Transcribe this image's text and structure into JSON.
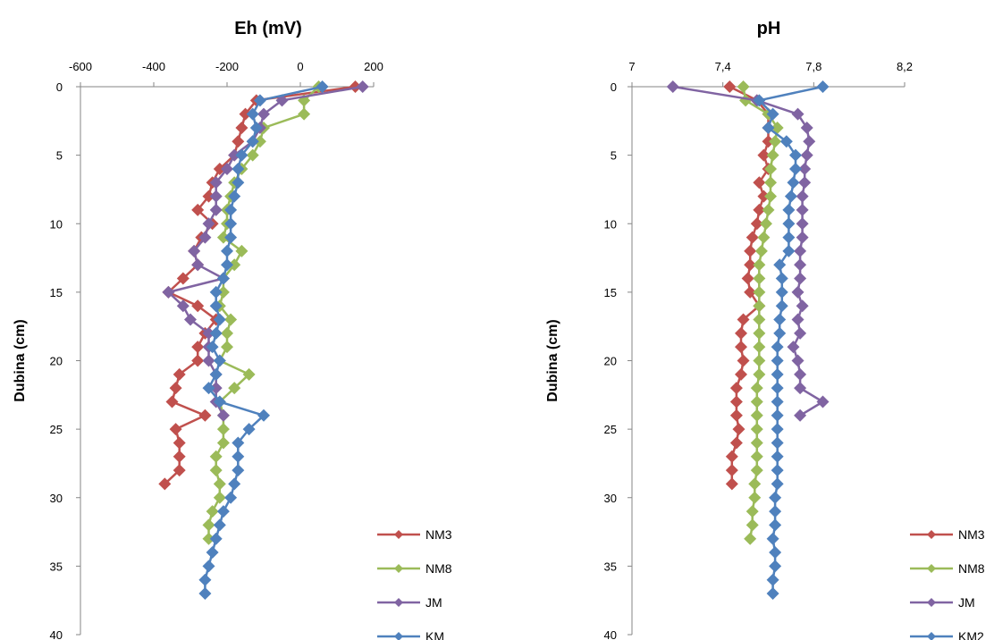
{
  "chart_data": [
    {
      "type": "scatter",
      "title": "Eh (mV)",
      "ylabel": "Dubina (cm)",
      "xlabel": "",
      "x_axis_position": "top",
      "y_inverted": true,
      "xlim": [
        -600,
        200
      ],
      "ylim": [
        0,
        40
      ],
      "x_ticks": [
        -600,
        -400,
        -200,
        0,
        200
      ],
      "x_tick_labels": [
        "-600",
        "-400",
        "-200",
        "0",
        "200"
      ],
      "y_ticks": [
        0,
        5,
        10,
        15,
        20,
        25,
        30,
        35,
        40
      ],
      "y_tick_labels": [
        "0",
        "5",
        "10",
        "15",
        "20",
        "25",
        "30",
        "35",
        "40"
      ],
      "grid": false,
      "legend_position": "bottom-right",
      "series": [
        {
          "name": "NM3",
          "color": "#C0504D",
          "points": [
            [
              150,
              0
            ],
            [
              -120,
              1
            ],
            [
              -150,
              2
            ],
            [
              -160,
              3
            ],
            [
              -170,
              4
            ],
            [
              -180,
              5
            ],
            [
              -220,
              6
            ],
            [
              -240,
              7
            ],
            [
              -250,
              8
            ],
            [
              -280,
              9
            ],
            [
              -240,
              10
            ],
            [
              -270,
              11
            ],
            [
              -290,
              12
            ],
            [
              -280,
              13
            ],
            [
              -320,
              14
            ],
            [
              -360,
              15
            ],
            [
              -280,
              16
            ],
            [
              -230,
              17
            ],
            [
              -260,
              18
            ],
            [
              -280,
              19
            ],
            [
              -280,
              20
            ],
            [
              -330,
              21
            ],
            [
              -340,
              22
            ],
            [
              -350,
              23
            ],
            [
              -260,
              24
            ],
            [
              -340,
              25
            ],
            [
              -330,
              26
            ],
            [
              -330,
              27
            ],
            [
              -330,
              28
            ],
            [
              -370,
              29
            ]
          ]
        },
        {
          "name": "NM8",
          "color": "#9BBB59",
          "points": [
            [
              50,
              0
            ],
            [
              10,
              1
            ],
            [
              10,
              2
            ],
            [
              -100,
              3
            ],
            [
              -110,
              4
            ],
            [
              -130,
              5
            ],
            [
              -160,
              6
            ],
            [
              -180,
              7
            ],
            [
              -190,
              8
            ],
            [
              -200,
              9
            ],
            [
              -200,
              10
            ],
            [
              -210,
              11
            ],
            [
              -160,
              12
            ],
            [
              -180,
              13
            ],
            [
              -210,
              14
            ],
            [
              -210,
              15
            ],
            [
              -220,
              16
            ],
            [
              -190,
              17
            ],
            [
              -200,
              18
            ],
            [
              -200,
              19
            ],
            [
              -220,
              20
            ],
            [
              -140,
              21
            ],
            [
              -180,
              22
            ],
            [
              -220,
              23
            ],
            [
              -210,
              24
            ],
            [
              -210,
              25
            ],
            [
              -210,
              26
            ],
            [
              -230,
              27
            ],
            [
              -230,
              28
            ],
            [
              -220,
              29
            ],
            [
              -220,
              30
            ],
            [
              -240,
              31
            ],
            [
              -250,
              32
            ],
            [
              -250,
              33
            ]
          ]
        },
        {
          "name": "JM",
          "color": "#8064A2",
          "points": [
            [
              170,
              0
            ],
            [
              -50,
              1
            ],
            [
              -100,
              2
            ],
            [
              -110,
              3
            ],
            [
              -130,
              4
            ],
            [
              -180,
              5
            ],
            [
              -200,
              6
            ],
            [
              -230,
              7
            ],
            [
              -230,
              8
            ],
            [
              -230,
              9
            ],
            [
              -250,
              10
            ],
            [
              -260,
              11
            ],
            [
              -290,
              12
            ],
            [
              -280,
              13
            ],
            [
              -210,
              14
            ],
            [
              -360,
              15
            ],
            [
              -320,
              16
            ],
            [
              -300,
              17
            ],
            [
              -250,
              18
            ],
            [
              -250,
              19
            ],
            [
              -250,
              20
            ],
            [
              -230,
              21
            ],
            [
              -230,
              22
            ],
            [
              -230,
              23
            ],
            [
              -210,
              24
            ]
          ]
        },
        {
          "name": "KM",
          "color": "#4F81BD",
          "points": [
            [
              60,
              0
            ],
            [
              -110,
              1
            ],
            [
              -130,
              2
            ],
            [
              -120,
              3
            ],
            [
              -130,
              4
            ],
            [
              -160,
              5
            ],
            [
              -170,
              6
            ],
            [
              -170,
              7
            ],
            [
              -180,
              8
            ],
            [
              -190,
              9
            ],
            [
              -190,
              10
            ],
            [
              -190,
              11
            ],
            [
              -200,
              12
            ],
            [
              -200,
              13
            ],
            [
              -210,
              14
            ],
            [
              -230,
              15
            ],
            [
              -230,
              16
            ],
            [
              -220,
              17
            ],
            [
              -230,
              18
            ],
            [
              -240,
              19
            ],
            [
              -220,
              20
            ],
            [
              -230,
              21
            ],
            [
              -250,
              22
            ],
            [
              -220,
              23
            ],
            [
              -100,
              24
            ],
            [
              -140,
              25
            ],
            [
              -170,
              26
            ],
            [
              -170,
              27
            ],
            [
              -170,
              28
            ],
            [
              -180,
              29
            ],
            [
              -190,
              30
            ],
            [
              -210,
              31
            ],
            [
              -220,
              32
            ],
            [
              -230,
              33
            ],
            [
              -240,
              34
            ],
            [
              -250,
              35
            ],
            [
              -260,
              36
            ],
            [
              -260,
              37
            ]
          ]
        }
      ]
    },
    {
      "type": "scatter",
      "title": "pH",
      "ylabel": "Dubina (cm)",
      "xlabel": "",
      "x_axis_position": "top",
      "y_inverted": true,
      "xlim": [
        7.0,
        8.2
      ],
      "ylim": [
        0,
        40
      ],
      "x_ticks": [
        7.0,
        7.4,
        7.8,
        8.2
      ],
      "x_tick_labels": [
        "7",
        "7,4",
        "7,8",
        "8,2"
      ],
      "y_ticks": [
        0,
        5,
        10,
        15,
        20,
        25,
        30,
        35,
        40
      ],
      "y_tick_labels": [
        "0",
        "5",
        "10",
        "15",
        "20",
        "25",
        "30",
        "35",
        "40"
      ],
      "grid": false,
      "legend_position": "bottom-right",
      "series": [
        {
          "name": "NM3",
          "color": "#C0504D",
          "points": [
            [
              7.43,
              0
            ],
            [
              7.55,
              1
            ],
            [
              7.6,
              2
            ],
            [
              7.6,
              3
            ],
            [
              7.6,
              4
            ],
            [
              7.58,
              5
            ],
            [
              7.6,
              6
            ],
            [
              7.56,
              7
            ],
            [
              7.58,
              8
            ],
            [
              7.56,
              9
            ],
            [
              7.55,
              10
            ],
            [
              7.53,
              11
            ],
            [
              7.52,
              12
            ],
            [
              7.52,
              13
            ],
            [
              7.51,
              14
            ],
            [
              7.52,
              15
            ],
            [
              7.56,
              16
            ],
            [
              7.49,
              17
            ],
            [
              7.48,
              18
            ],
            [
              7.48,
              19
            ],
            [
              7.49,
              20
            ],
            [
              7.48,
              21
            ],
            [
              7.46,
              22
            ],
            [
              7.46,
              23
            ],
            [
              7.46,
              24
            ],
            [
              7.47,
              25
            ],
            [
              7.46,
              26
            ],
            [
              7.44,
              27
            ],
            [
              7.44,
              28
            ],
            [
              7.44,
              29
            ]
          ]
        },
        {
          "name": "NM8",
          "color": "#9BBB59",
          "points": [
            [
              7.49,
              0
            ],
            [
              7.5,
              1
            ],
            [
              7.6,
              2
            ],
            [
              7.64,
              3
            ],
            [
              7.63,
              4
            ],
            [
              7.62,
              5
            ],
            [
              7.61,
              6
            ],
            [
              7.61,
              7
            ],
            [
              7.61,
              8
            ],
            [
              7.6,
              9
            ],
            [
              7.59,
              10
            ],
            [
              7.58,
              11
            ],
            [
              7.57,
              12
            ],
            [
              7.56,
              13
            ],
            [
              7.56,
              14
            ],
            [
              7.56,
              15
            ],
            [
              7.56,
              16
            ],
            [
              7.56,
              17
            ],
            [
              7.56,
              18
            ],
            [
              7.56,
              19
            ],
            [
              7.56,
              20
            ],
            [
              7.56,
              21
            ],
            [
              7.55,
              22
            ],
            [
              7.55,
              23
            ],
            [
              7.55,
              24
            ],
            [
              7.55,
              25
            ],
            [
              7.55,
              26
            ],
            [
              7.55,
              27
            ],
            [
              7.55,
              28
            ],
            [
              7.54,
              29
            ],
            [
              7.54,
              30
            ],
            [
              7.53,
              31
            ],
            [
              7.53,
              32
            ],
            [
              7.52,
              33
            ]
          ]
        },
        {
          "name": "JM",
          "color": "#8064A2",
          "points": [
            [
              7.18,
              0
            ],
            [
              7.55,
              1
            ],
            [
              7.73,
              2
            ],
            [
              7.77,
              3
            ],
            [
              7.78,
              4
            ],
            [
              7.77,
              5
            ],
            [
              7.76,
              6
            ],
            [
              7.76,
              7
            ],
            [
              7.75,
              8
            ],
            [
              7.75,
              9
            ],
            [
              7.75,
              10
            ],
            [
              7.75,
              11
            ],
            [
              7.74,
              12
            ],
            [
              7.74,
              13
            ],
            [
              7.74,
              14
            ],
            [
              7.73,
              15
            ],
            [
              7.75,
              16
            ],
            [
              7.73,
              17
            ],
            [
              7.74,
              18
            ],
            [
              7.71,
              19
            ],
            [
              7.73,
              20
            ],
            [
              7.74,
              21
            ],
            [
              7.74,
              22
            ],
            [
              7.84,
              23
            ],
            [
              7.74,
              24
            ]
          ]
        },
        {
          "name": "KM2",
          "color": "#4F81BD",
          "points": [
            [
              7.84,
              0
            ],
            [
              7.56,
              1
            ],
            [
              7.62,
              2
            ],
            [
              7.6,
              3
            ],
            [
              7.68,
              4
            ],
            [
              7.72,
              5
            ],
            [
              7.72,
              6
            ],
            [
              7.71,
              7
            ],
            [
              7.7,
              8
            ],
            [
              7.69,
              9
            ],
            [
              7.69,
              10
            ],
            [
              7.69,
              11
            ],
            [
              7.69,
              12
            ],
            [
              7.65,
              13
            ],
            [
              7.66,
              14
            ],
            [
              7.66,
              15
            ],
            [
              7.66,
              16
            ],
            [
              7.65,
              17
            ],
            [
              7.65,
              18
            ],
            [
              7.64,
              19
            ],
            [
              7.64,
              20
            ],
            [
              7.64,
              21
            ],
            [
              7.64,
              22
            ],
            [
              7.64,
              23
            ],
            [
              7.64,
              24
            ],
            [
              7.64,
              25
            ],
            [
              7.64,
              26
            ],
            [
              7.64,
              27
            ],
            [
              7.64,
              28
            ],
            [
              7.64,
              29
            ],
            [
              7.63,
              30
            ],
            [
              7.63,
              31
            ],
            [
              7.63,
              32
            ],
            [
              7.62,
              33
            ],
            [
              7.63,
              34
            ],
            [
              7.63,
              35
            ],
            [
              7.62,
              36
            ],
            [
              7.62,
              37
            ]
          ]
        }
      ]
    }
  ]
}
